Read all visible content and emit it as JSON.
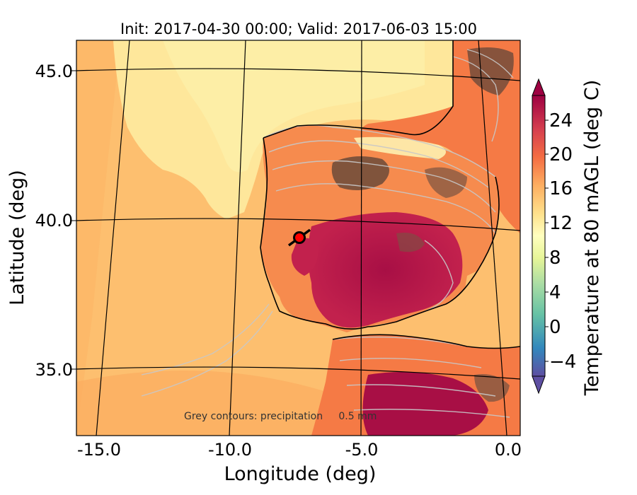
{
  "title": "Init: 2017-04-30 00:00; Valid: 2017-06-03 15:00",
  "x_axis": {
    "label": "Longitude (deg)",
    "ticks": [
      "-15.0",
      "-10.0",
      "-5.0",
      "0.0"
    ]
  },
  "y_axis": {
    "label": "Latitude (deg)",
    "ticks": [
      "45.0",
      "40.0",
      "35.0"
    ]
  },
  "colorbar": {
    "label": "Temperature at 80 mAGL (deg C)",
    "ticks": [
      "24",
      "20",
      "16",
      "12",
      "8",
      "4",
      "0",
      "−4"
    ],
    "range": [
      -6,
      27
    ],
    "extend": "both",
    "colormap": "Spectral_r",
    "colors_low_to_high": [
      "#5e4fa2",
      "#3288bd",
      "#66c2a5",
      "#abdda4",
      "#e6f598",
      "#ffffbf",
      "#fee08b",
      "#fdae61",
      "#f46d43",
      "#d53e4f",
      "#9e0142"
    ]
  },
  "annotation": "Grey contours: precipitation     0.5 mm",
  "marker": {
    "color": "#ff0000",
    "lon": -7.6,
    "lat": 39.4
  },
  "map": {
    "region": "Iberian Peninsula and surrounding Atlantic",
    "lon_range": [
      -16.0,
      0.3
    ],
    "lat_range": [
      32.8,
      46.0
    ],
    "colors": {
      "sea_warm": "#fdbf6f",
      "sea_cool": "#fee79b",
      "sea_light": "#fdeea6",
      "land_hot": "#a80f45",
      "land_warm": "#f57a45",
      "mountain": "#6b4a3a",
      "contour_grey": "#c8c8c8"
    }
  }
}
